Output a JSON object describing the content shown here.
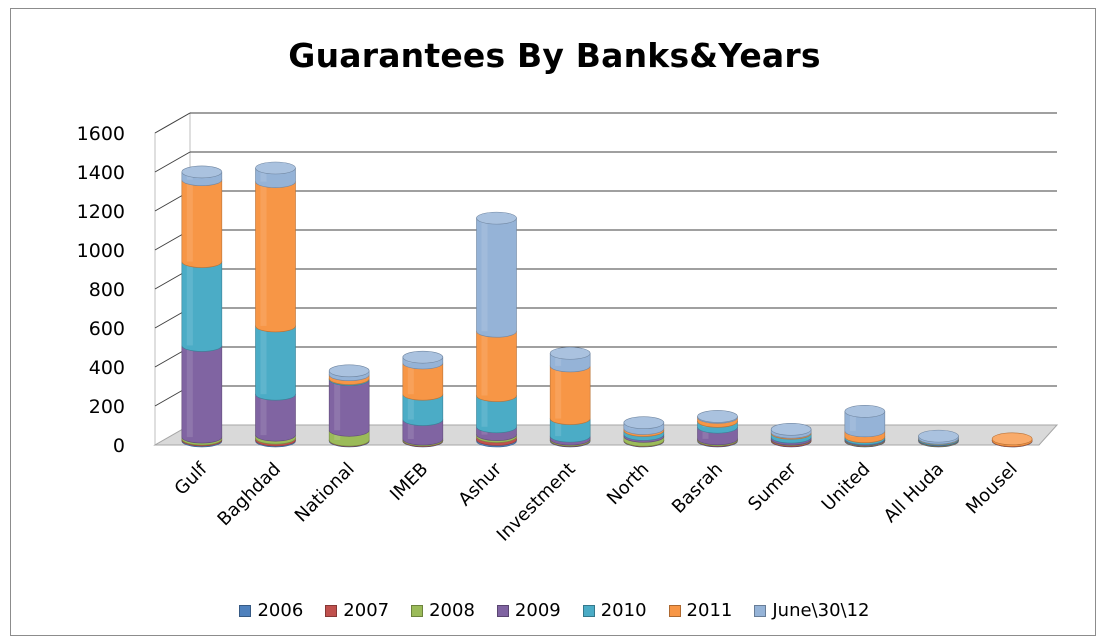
{
  "chart_data": {
    "type": "bar",
    "stacked": true,
    "three_d": true,
    "title": "Guarantees By Banks&Years",
    "categories": [
      "Gulf",
      "Baghdad",
      "National",
      "IMEB",
      "Ashur",
      "Investment",
      "North",
      "Basrah",
      "Sumer",
      "United",
      "All Huda",
      "Mousel"
    ],
    "series": [
      {
        "name": "2006",
        "color": "#4f81bd",
        "values": [
          5,
          5,
          3,
          2,
          8,
          3,
          2,
          3,
          2,
          2,
          2,
          1
        ]
      },
      {
        "name": "2007",
        "color": "#c0504d",
        "values": [
          5,
          10,
          2,
          3,
          15,
          2,
          2,
          3,
          5,
          2,
          1,
          2
        ]
      },
      {
        "name": "2008",
        "color": "#9bbb59",
        "values": [
          10,
          15,
          50,
          5,
          10,
          5,
          20,
          5,
          3,
          3,
          2,
          0
        ]
      },
      {
        "name": "2009",
        "color": "#8064a2",
        "values": [
          470,
          210,
          260,
          100,
          40,
          15,
          10,
          60,
          10,
          5,
          3,
          0
        ]
      },
      {
        "name": "2010",
        "color": "#4bacc6",
        "values": [
          430,
          350,
          5,
          130,
          160,
          90,
          20,
          30,
          20,
          10,
          5,
          0
        ]
      },
      {
        "name": "2011",
        "color": "#f79646",
        "values": [
          420,
          740,
          20,
          160,
          330,
          270,
          10,
          20,
          5,
          30,
          2,
          8
        ]
      },
      {
        "name": "June\\30\\12",
        "color": "#95b3d7",
        "values": [
          40,
          70,
          20,
          30,
          580,
          65,
          30,
          5,
          15,
          100,
          10,
          0
        ]
      }
    ],
    "y_axis": {
      "min": 0,
      "max": 1600,
      "step": 200,
      "ticks": [
        "0",
        "200",
        "400",
        "600",
        "800",
        "1000",
        "1200",
        "1400",
        "1600"
      ]
    },
    "grid": true,
    "legend_position": "bottom"
  }
}
